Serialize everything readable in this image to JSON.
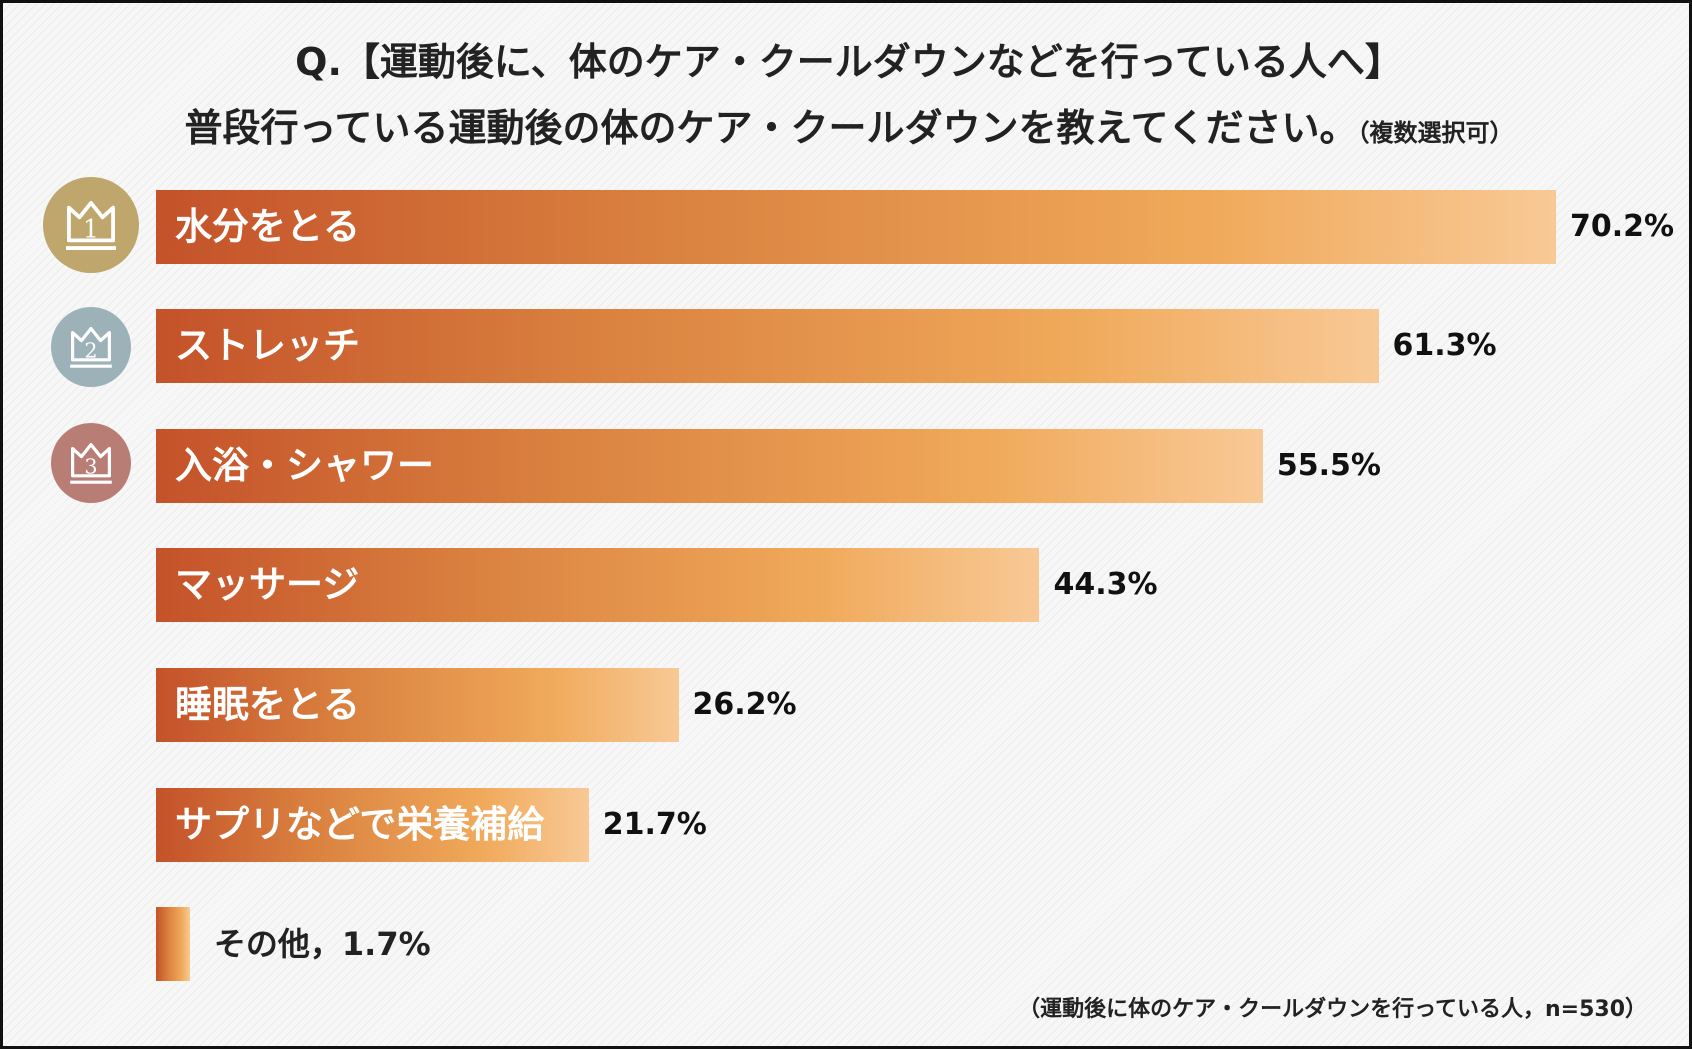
{
  "title": {
    "line1": "Q.【運動後に、体のケア・クールダウンなどを行っている人へ】",
    "line2": "普段行っている運動後の体のケア・クールダウンを教えてください。",
    "line2_note": "（複数選択可）"
  },
  "ranks": [
    {
      "number": "1",
      "color": "#bfa66d"
    },
    {
      "number": "2",
      "color": "#9cb2b8"
    },
    {
      "number": "3",
      "color": "#b87d74"
    }
  ],
  "chart_data": {
    "type": "bar",
    "orientation": "horizontal",
    "categories": [
      "水分をとる",
      "ストレッチ",
      "入浴・シャワー",
      "マッサージ",
      "睡眠をとる",
      "サプリなどで栄養補給",
      "その他"
    ],
    "values": [
      70.2,
      61.3,
      55.5,
      44.3,
      26.2,
      21.7,
      1.7
    ],
    "value_labels": [
      "70.2%",
      "61.3%",
      "55.5%",
      "44.3%",
      "26.2%",
      "21.7%",
      "その他，1.7%"
    ],
    "unit": "%",
    "bar_color_start": "#c4522a",
    "bar_color_end": "#f8c996"
  },
  "footnote": "（運動後に体のケア・クールダウンを行っている人，n=530）"
}
